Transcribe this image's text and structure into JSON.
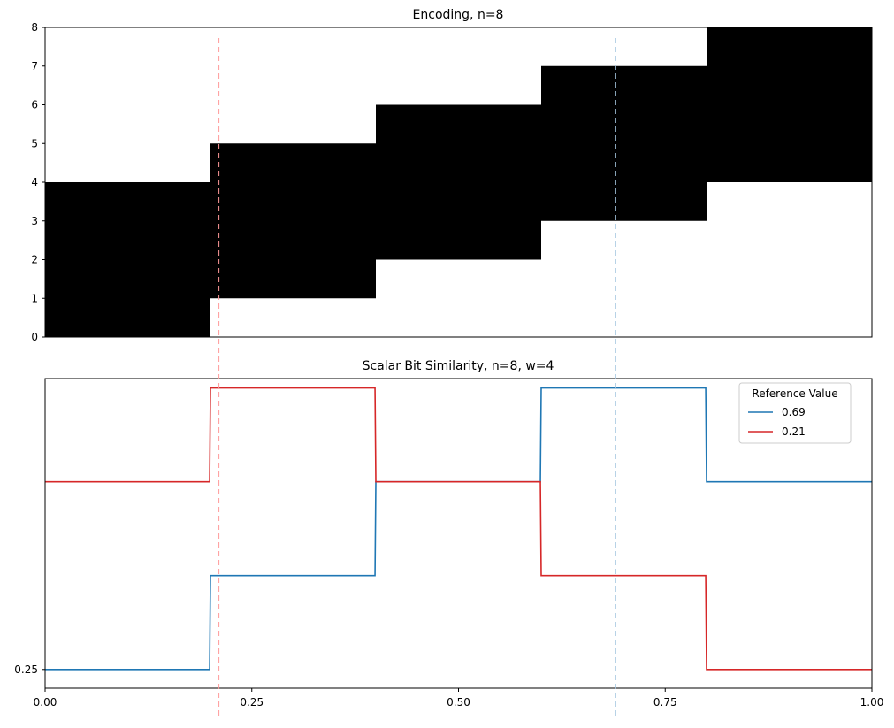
{
  "chart_data": [
    {
      "type": "heatmap",
      "title": "Encoding, n=8",
      "xlim": [
        0,
        1
      ],
      "ylim": [
        0,
        8
      ],
      "yticks": [
        "0",
        "1",
        "2",
        "3",
        "4",
        "5",
        "6",
        "7",
        "8"
      ],
      "color_on": "#000000",
      "color_off": "#ffffff",
      "bands": [
        {
          "x_start": 0.0,
          "x_end": 0.2,
          "bit_start": 0,
          "bit_end": 4
        },
        {
          "x_start": 0.2,
          "x_end": 0.4,
          "bit_start": 1,
          "bit_end": 5
        },
        {
          "x_start": 0.4,
          "x_end": 0.6,
          "bit_start": 2,
          "bit_end": 6
        },
        {
          "x_start": 0.6,
          "x_end": 0.8,
          "bit_start": 3,
          "bit_end": 7
        },
        {
          "x_start": 0.8,
          "x_end": 1.0,
          "bit_start": 4,
          "bit_end": 8
        }
      ],
      "reference_lines": [
        {
          "x": 0.21,
          "color": "#ff9999"
        },
        {
          "x": 0.69,
          "color": "#a6c8e0"
        }
      ]
    },
    {
      "type": "line",
      "title": "Scalar Bit Similarity, n=8, w=4",
      "xlim": [
        0,
        1
      ],
      "ylim": [
        0.2,
        1.025
      ],
      "xticks": [
        "0.00",
        "0.25",
        "0.50",
        "0.75",
        "1.00"
      ],
      "yticks": [
        "0.25"
      ],
      "legend_title": "Reference Value",
      "legend_position": "top-right",
      "series": [
        {
          "name": "0.69",
          "color": "#1f77b4",
          "points": [
            [
              0.0,
              0.25
            ],
            [
              0.199,
              0.25
            ],
            [
              0.2,
              0.5
            ],
            [
              0.399,
              0.5
            ],
            [
              0.4,
              0.75
            ],
            [
              0.599,
              0.75
            ],
            [
              0.6,
              1.0
            ],
            [
              0.799,
              1.0
            ],
            [
              0.8,
              0.75
            ],
            [
              1.0,
              0.75
            ]
          ]
        },
        {
          "name": "0.21",
          "color": "#d62728",
          "points": [
            [
              0.0,
              0.75
            ],
            [
              0.199,
              0.75
            ],
            [
              0.2,
              1.0
            ],
            [
              0.399,
              1.0
            ],
            [
              0.4,
              0.75
            ],
            [
              0.599,
              0.75
            ],
            [
              0.6,
              0.5
            ],
            [
              0.799,
              0.5
            ],
            [
              0.8,
              0.25
            ],
            [
              1.0,
              0.25
            ]
          ]
        }
      ]
    }
  ]
}
